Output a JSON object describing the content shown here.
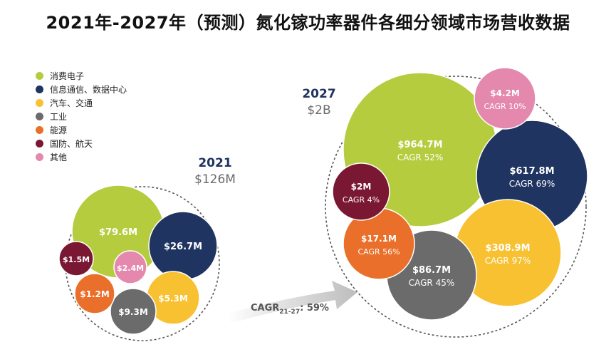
{
  "title": "2021年-2027年（预测）氮化镓功率器件各细分领域市场营收数据",
  "chart_data": {
    "type": "bubble",
    "legend_position": "top-left",
    "segments": [
      {
        "name": "消费电子",
        "color": "#b5cc3e"
      },
      {
        "name": "信息通信、数据中心",
        "color": "#1f3460"
      },
      {
        "name": "汽车、交通",
        "color": "#f8c132"
      },
      {
        "name": "工业",
        "color": "#6b6b6b"
      },
      {
        "name": "能源",
        "color": "#e96f2a"
      },
      {
        "name": "国防、航天",
        "color": "#7a1834"
      },
      {
        "name": "其他",
        "color": "#e488ad"
      }
    ],
    "panels": [
      {
        "year": "2021",
        "total": "$126M",
        "bubbles": [
          {
            "segment": "消费电子",
            "value": "$79.6M",
            "cagr": ""
          },
          {
            "segment": "信息通信、数据中心",
            "value": "$26.7M",
            "cagr": ""
          },
          {
            "segment": "汽车、交通",
            "value": "$5.3M",
            "cagr": ""
          },
          {
            "segment": "工业",
            "value": "$9.3M",
            "cagr": ""
          },
          {
            "segment": "能源",
            "value": "$1.2M",
            "cagr": ""
          },
          {
            "segment": "国防、航天",
            "value": "$1.5M",
            "cagr": ""
          },
          {
            "segment": "其他",
            "value": "$2.4M",
            "cagr": ""
          }
        ]
      },
      {
        "year": "2027",
        "total": "$2B",
        "bubbles": [
          {
            "segment": "消费电子",
            "value": "$964.7M",
            "cagr": "CAGR 52%"
          },
          {
            "segment": "信息通信、数据中心",
            "value": "$617.8M",
            "cagr": "CAGR 69%"
          },
          {
            "segment": "汽车、交通",
            "value": "$308.9M",
            "cagr": "CAGR 97%"
          },
          {
            "segment": "工业",
            "value": "$86.7M",
            "cagr": "CAGR 45%"
          },
          {
            "segment": "能源",
            "value": "$17.1M",
            "cagr": "CAGR 56%"
          },
          {
            "segment": "国防、航天",
            "value": "$2M",
            "cagr": "CAGR 4%"
          },
          {
            "segment": "其他",
            "value": "$4.2M",
            "cagr": "CAGR 10%"
          }
        ]
      }
    ],
    "arrow_label": {
      "prefix": "CAGR",
      "subscript": "21-27",
      "suffix": ": 59%"
    }
  }
}
